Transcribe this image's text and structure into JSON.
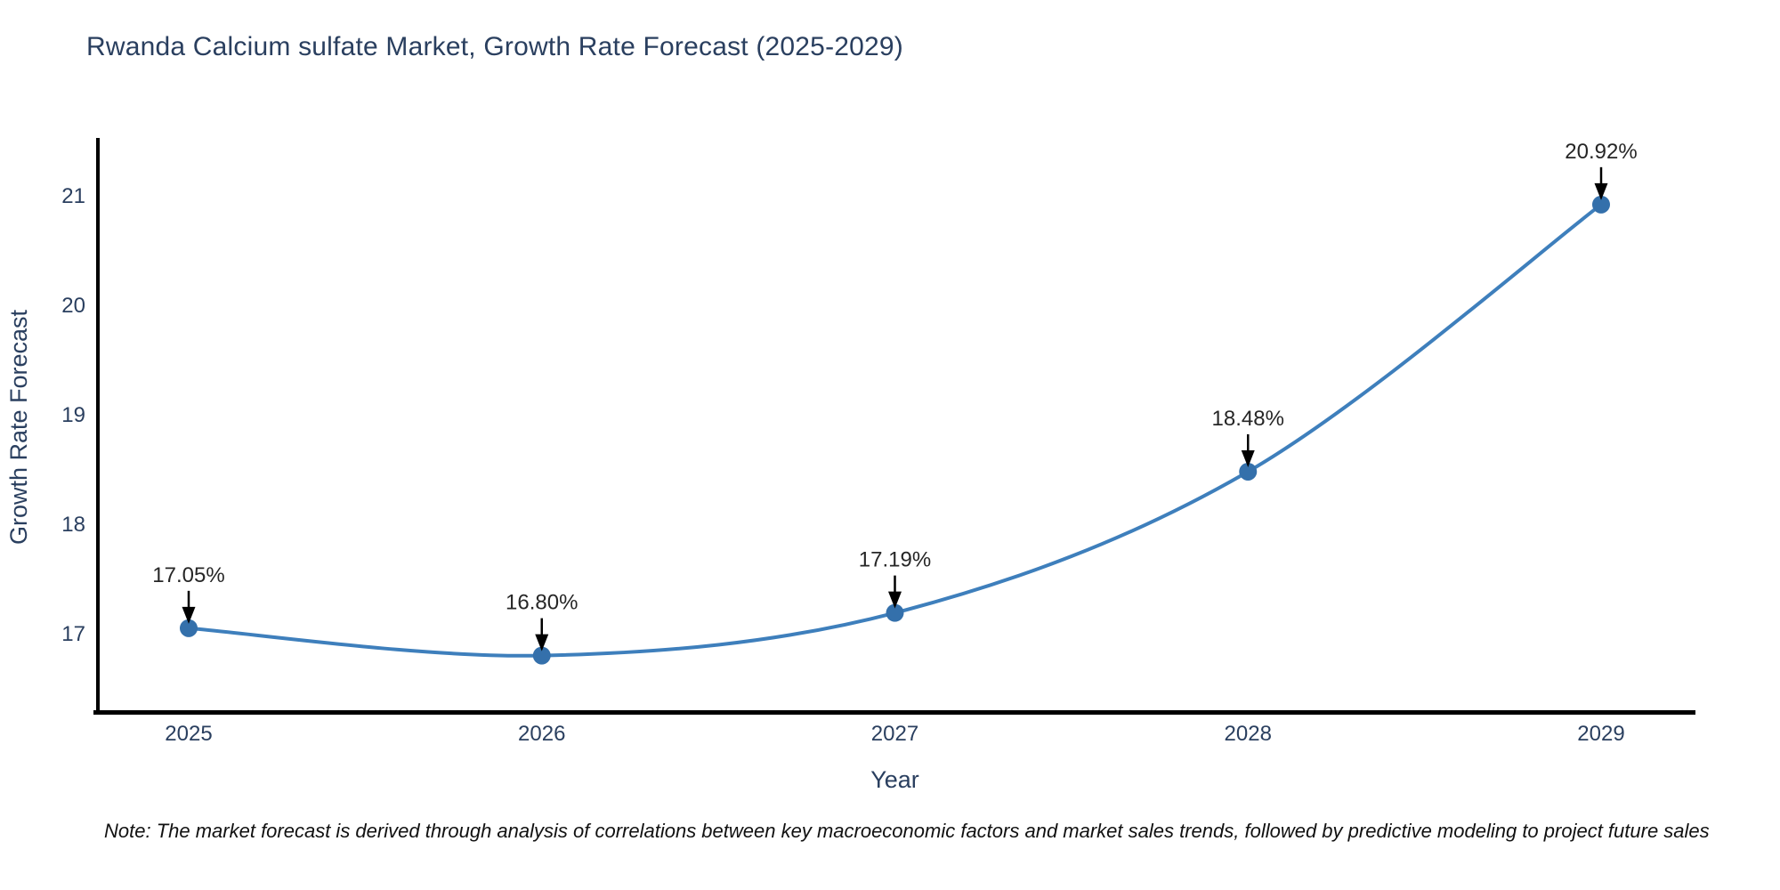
{
  "title": "Rwanda Calcium sulfate Market, Growth Rate Forecast (2025-2029)",
  "note": "Note: The market forecast is derived through analysis of correlations between key macroeconomic factors and market sales trends, followed by predictive modeling to project future sales",
  "chart_data": {
    "type": "line",
    "title": "Rwanda Calcium sulfate Market, Growth Rate Forecast (2025-2029)",
    "x": [
      2025,
      2026,
      2027,
      2028,
      2029
    ],
    "x_tick_labels": [
      "2025",
      "2026",
      "2027",
      "2028",
      "2029"
    ],
    "series": [
      {
        "name": "Growth Rate Forecast",
        "values": [
          17.05,
          16.8,
          17.19,
          18.48,
          20.92
        ],
        "point_labels": [
          "17.05%",
          "16.80%",
          "17.19%",
          "18.48%",
          "20.92%"
        ]
      }
    ],
    "xlabel": "Year",
    "ylabel": "Growth Rate Forecast",
    "yticks": [
      17,
      18,
      19,
      20,
      21
    ],
    "ylim": [
      16.25,
      21.55
    ],
    "grid": "off",
    "legend": "none",
    "line_smoothing": "spline",
    "colors": {
      "line": "#3e7fbc",
      "marker": "#3470ab",
      "arrow": "#000000",
      "axis_spine": "#000000",
      "axis_text": "#2a3f5f",
      "annotation_text": "#262626",
      "background": "#ffffff"
    }
  }
}
